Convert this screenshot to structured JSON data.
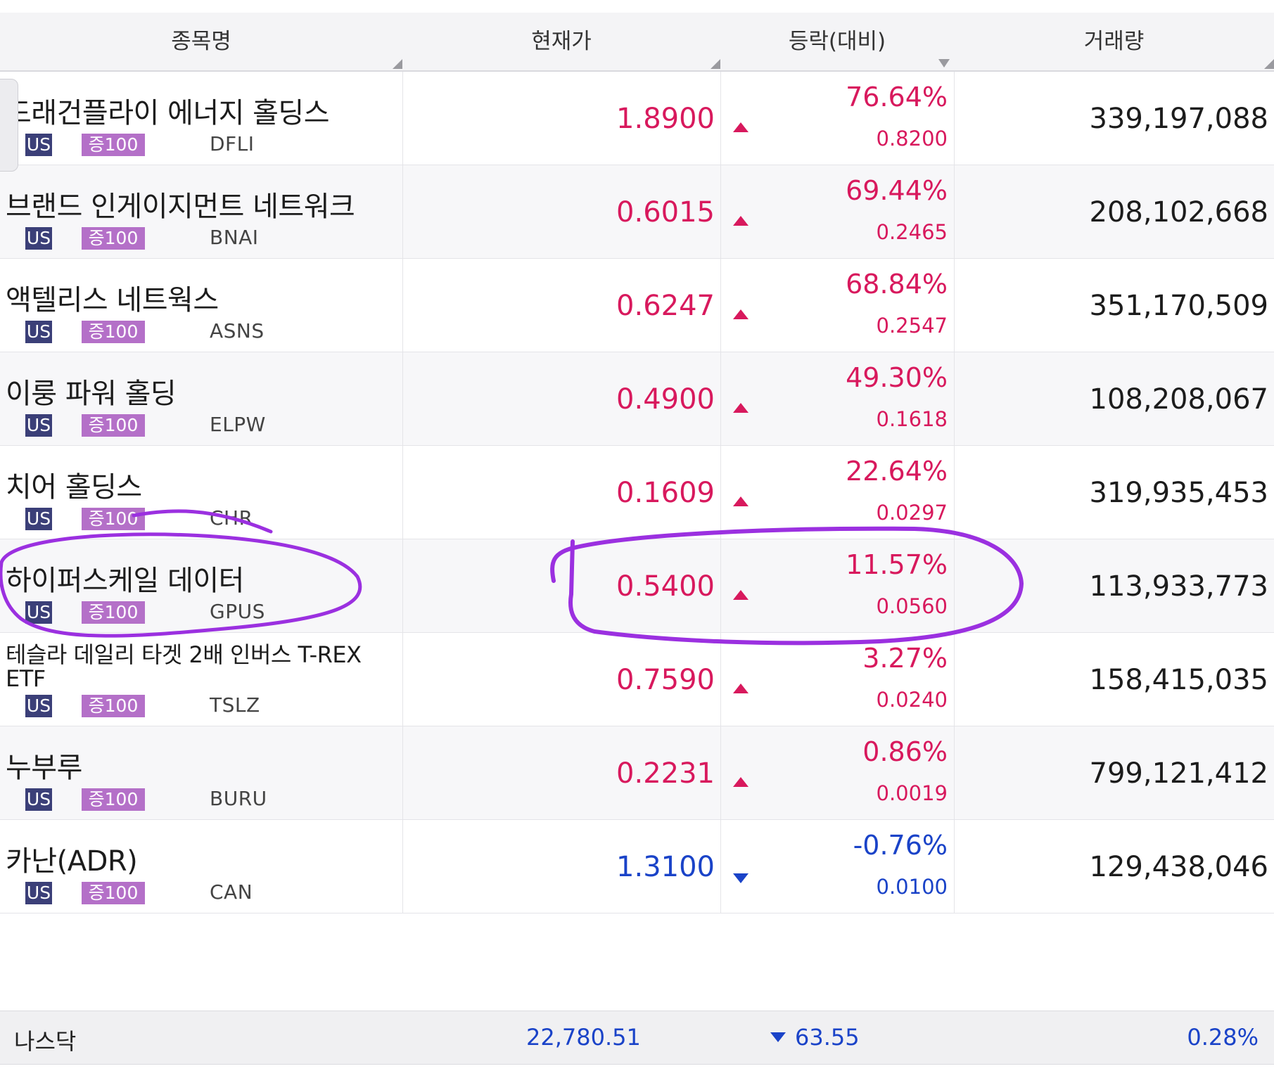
{
  "header": {
    "col_name": "종목명",
    "col_price": "현재가",
    "col_change": "등락(대비)",
    "col_volume": "거래량"
  },
  "badges": {
    "market": "US",
    "margin": "증100"
  },
  "rows": [
    {
      "name": "드래건플라이 에너지 홀딩스",
      "ticker": "DFLI",
      "price": "1.8900",
      "rate": "76.64%",
      "diff": "0.8200",
      "volume": "339,197,088",
      "direction": "up"
    },
    {
      "name": "브랜드 인게이지먼트 네트워크",
      "ticker": "BNAI",
      "price": "0.6015",
      "rate": "69.44%",
      "diff": "0.2465",
      "volume": "208,102,668",
      "direction": "up"
    },
    {
      "name": "액텔리스 네트웍스",
      "ticker": "ASNS",
      "price": "0.6247",
      "rate": "68.84%",
      "diff": "0.2547",
      "volume": "351,170,509",
      "direction": "up"
    },
    {
      "name": "이룽 파워 홀딩",
      "ticker": "ELPW",
      "price": "0.4900",
      "rate": "49.30%",
      "diff": "0.1618",
      "volume": "108,208,067",
      "direction": "up"
    },
    {
      "name": "치어 홀딩스",
      "ticker": "CHR",
      "price": "0.1609",
      "rate": "22.64%",
      "diff": "0.0297",
      "volume": "319,935,453",
      "direction": "up"
    },
    {
      "name": "하이퍼스케일 데이터",
      "ticker": "GPUS",
      "price": "0.5400",
      "rate": "11.57%",
      "diff": "0.0560",
      "volume": "113,933,773",
      "direction": "up"
    },
    {
      "name": "테슬라 데일리 타겟 2배 인버스 T-REX ETF",
      "ticker": "TSLZ",
      "price": "0.7590",
      "rate": "3.27%",
      "diff": "0.0240",
      "volume": "158,415,035",
      "direction": "up"
    },
    {
      "name": "누부루",
      "ticker": "BURU",
      "price": "0.2231",
      "rate": "0.86%",
      "diff": "0.0019",
      "volume": "799,121,412",
      "direction": "up"
    },
    {
      "name": "카난(ADR)",
      "ticker": "CAN",
      "price": "1.3100",
      "rate": "-0.76%",
      "diff": "0.0100",
      "volume": "129,438,046",
      "direction": "down"
    }
  ],
  "index_bar": {
    "name": "나스닥",
    "value": "22,780.51",
    "change": "63.55",
    "rate": "0.28%",
    "direction": "down"
  },
  "colors": {
    "up": "#d8195d",
    "down": "#1a43c8",
    "annotation": "#9b30e0",
    "market_badge": "#3b3f78",
    "margin_badge": "#b470c8"
  }
}
